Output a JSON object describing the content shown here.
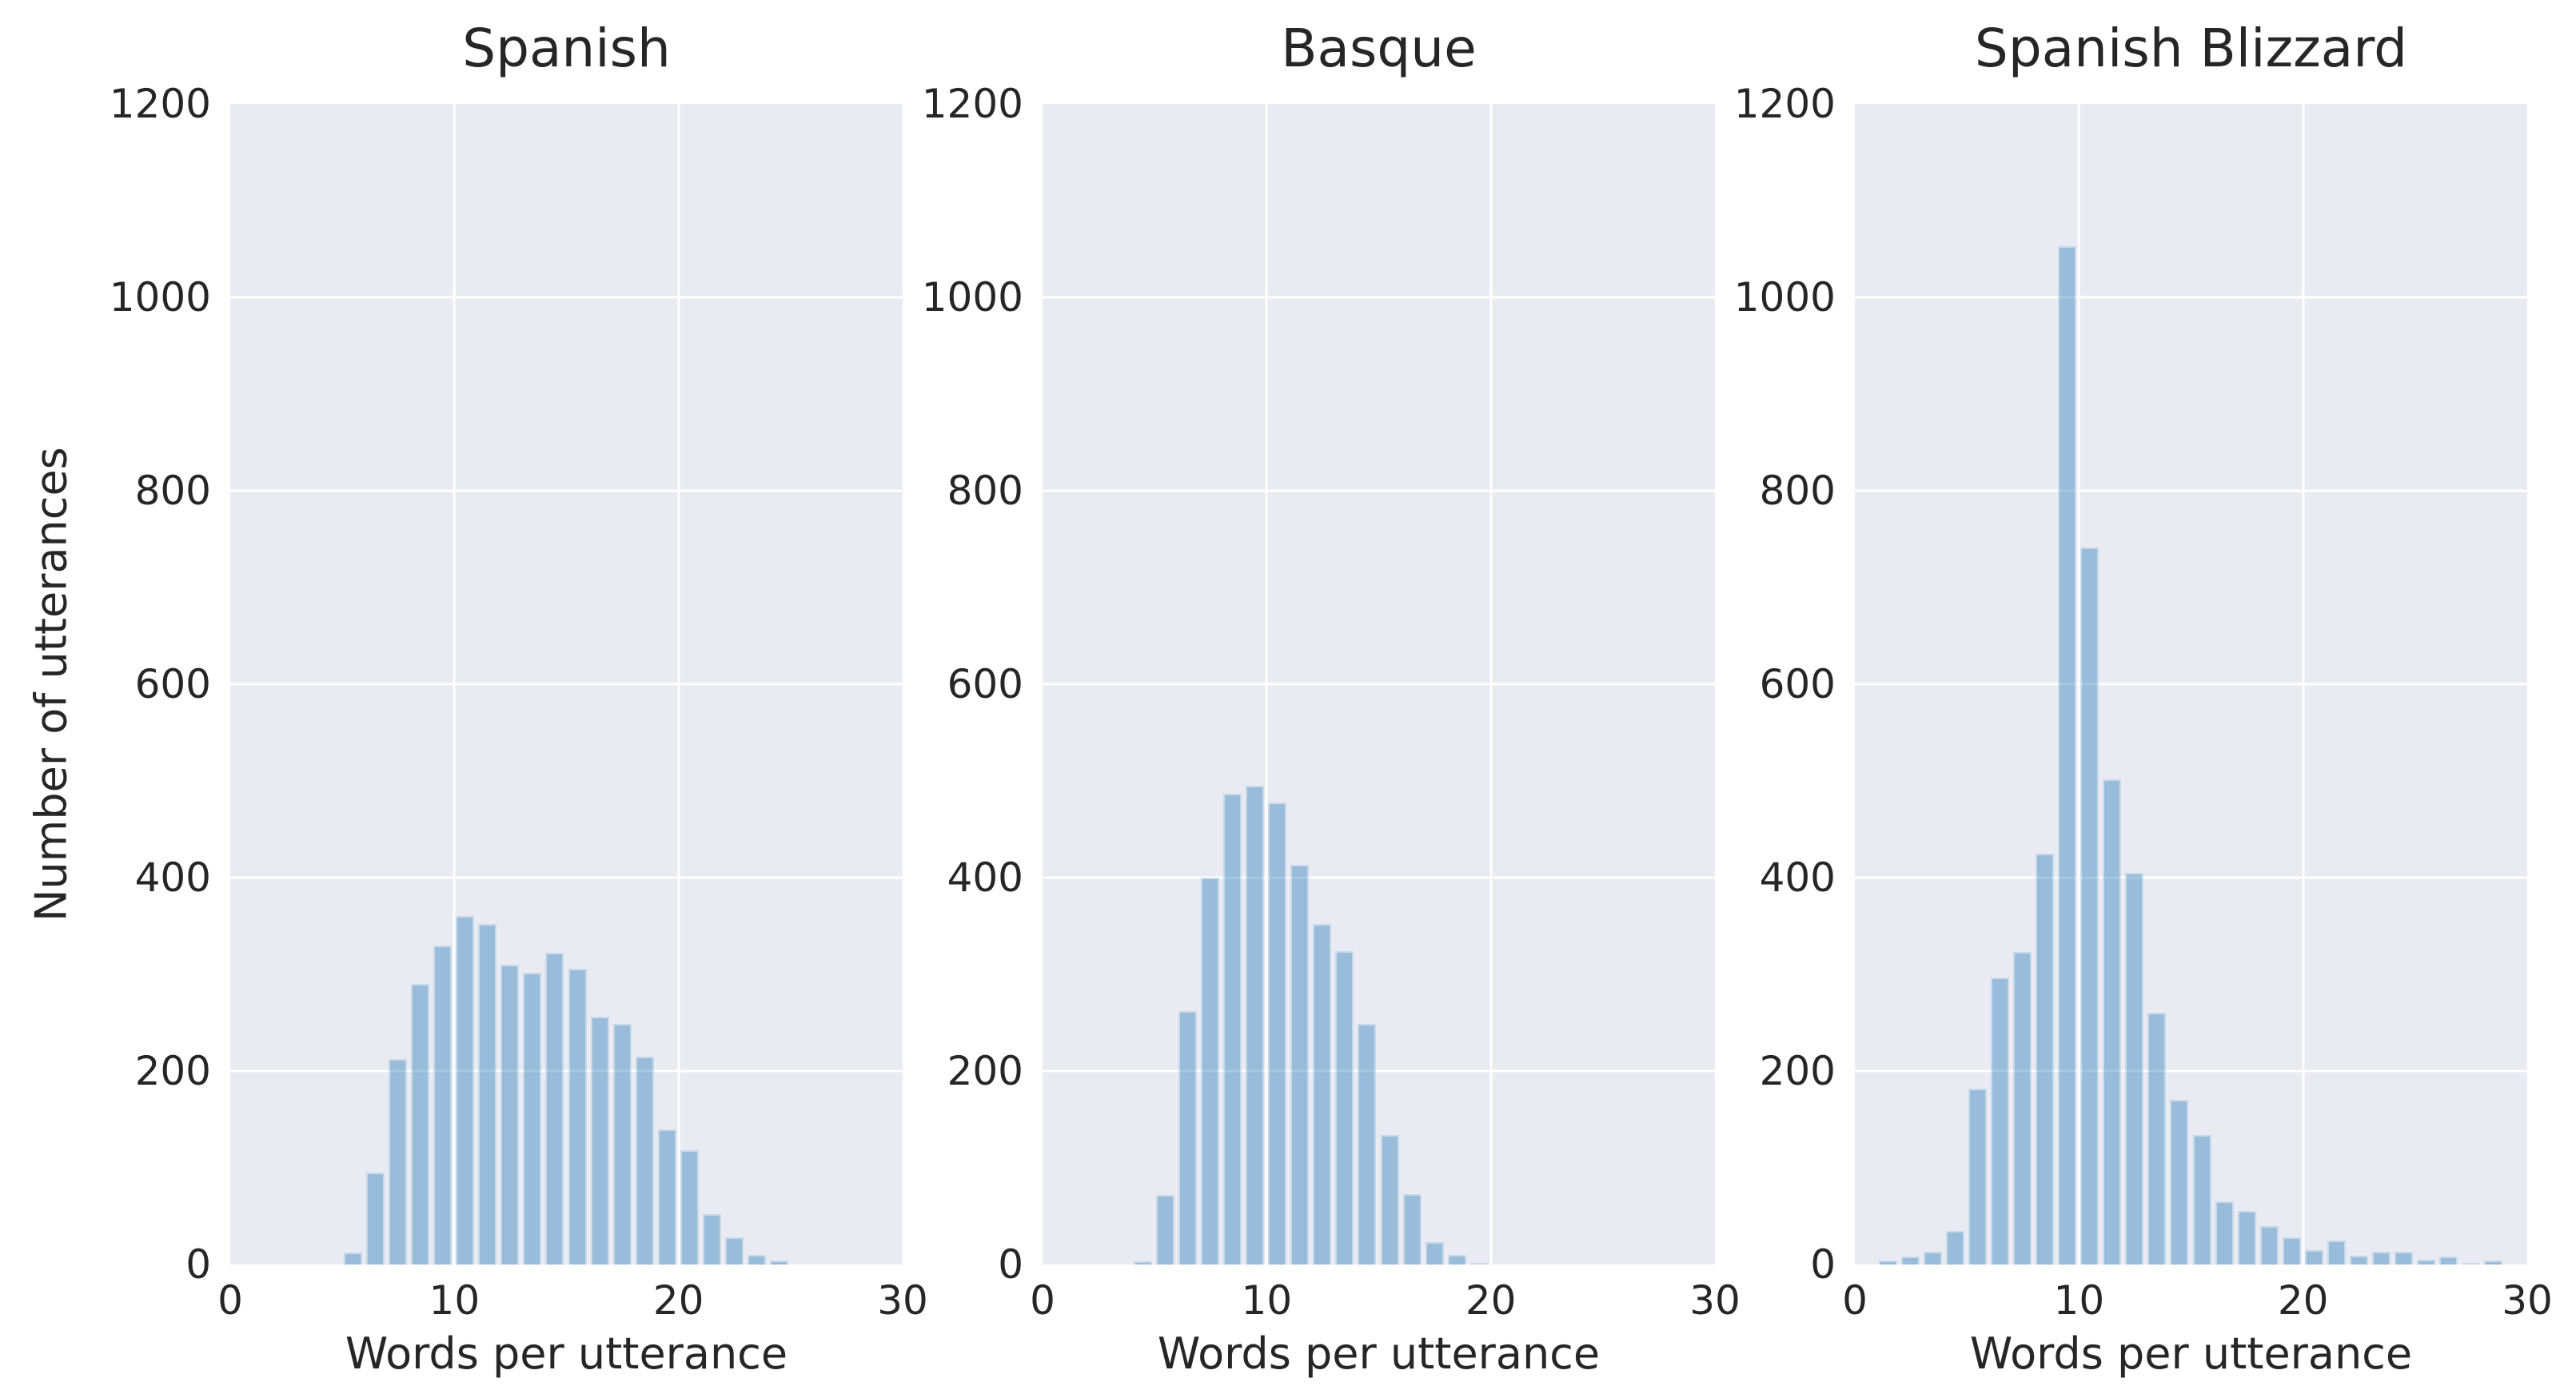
{
  "figure": {
    "background_color": "#ffffff",
    "panel_background_color": "#eaeaf2",
    "gridline_color": "#ffffff",
    "bar_base_color": "#1f77b4",
    "bar_alpha": 0.4,
    "text_color": "#262626"
  },
  "shared": {
    "ylabel": "Number of utterances",
    "xlabel": "Words per utterance"
  },
  "chart_data": [
    {
      "type": "bar",
      "title": "Spanish",
      "xlabel": "Words per utterance",
      "ylabel": "Number of utterances",
      "xlim": [
        0,
        30
      ],
      "ylim": [
        0,
        1200
      ],
      "xticks": [
        0,
        10,
        20,
        30
      ],
      "yticks": [
        0,
        200,
        400,
        600,
        800,
        1000,
        1200
      ],
      "grid": true,
      "bin_width": 1,
      "bins": [
        5,
        6,
        7,
        8,
        9,
        10,
        11,
        12,
        13,
        14,
        15,
        16,
        17,
        18,
        19,
        20,
        21,
        22,
        23,
        24
      ],
      "counts": [
        12,
        95,
        212,
        290,
        330,
        360,
        352,
        310,
        302,
        322,
        306,
        256,
        249,
        215,
        140,
        118,
        52,
        28,
        10,
        4
      ]
    },
    {
      "type": "bar",
      "title": "Basque",
      "xlabel": "Words per utterance",
      "ylabel": "Number of utterances",
      "xlim": [
        0,
        30
      ],
      "ylim": [
        0,
        1200
      ],
      "xticks": [
        0,
        10,
        20,
        30
      ],
      "yticks": [
        0,
        200,
        400,
        600,
        800,
        1000,
        1200
      ],
      "grid": true,
      "bin_width": 1,
      "bins": [
        4,
        5,
        6,
        7,
        8,
        9,
        10,
        11,
        12,
        13,
        14,
        15,
        16,
        17,
        18,
        19
      ],
      "counts": [
        3,
        72,
        262,
        400,
        487,
        495,
        478,
        413,
        352,
        324,
        249,
        134,
        73,
        23,
        10,
        2
      ]
    },
    {
      "type": "bar",
      "title": "Spanish Blizzard",
      "xlabel": "Words per utterance",
      "ylabel": "Number of utterances",
      "xlim": [
        0,
        30
      ],
      "ylim": [
        0,
        1200
      ],
      "xticks": [
        0,
        10,
        20,
        30
      ],
      "yticks": [
        0,
        200,
        400,
        600,
        800,
        1000,
        1200
      ],
      "grid": true,
      "bin_width": 1,
      "bins": [
        1,
        2,
        3,
        4,
        5,
        6,
        7,
        8,
        9,
        10,
        11,
        12,
        13,
        14,
        15,
        16,
        17,
        18,
        19,
        20,
        21,
        22,
        23,
        24,
        25,
        26,
        27,
        28
      ],
      "counts": [
        4,
        8,
        13,
        35,
        182,
        297,
        323,
        425,
        1053,
        741,
        502,
        405,
        260,
        170,
        134,
        65,
        55,
        40,
        28,
        15,
        25,
        9,
        13,
        13,
        5,
        8,
        2,
        4
      ]
    }
  ]
}
